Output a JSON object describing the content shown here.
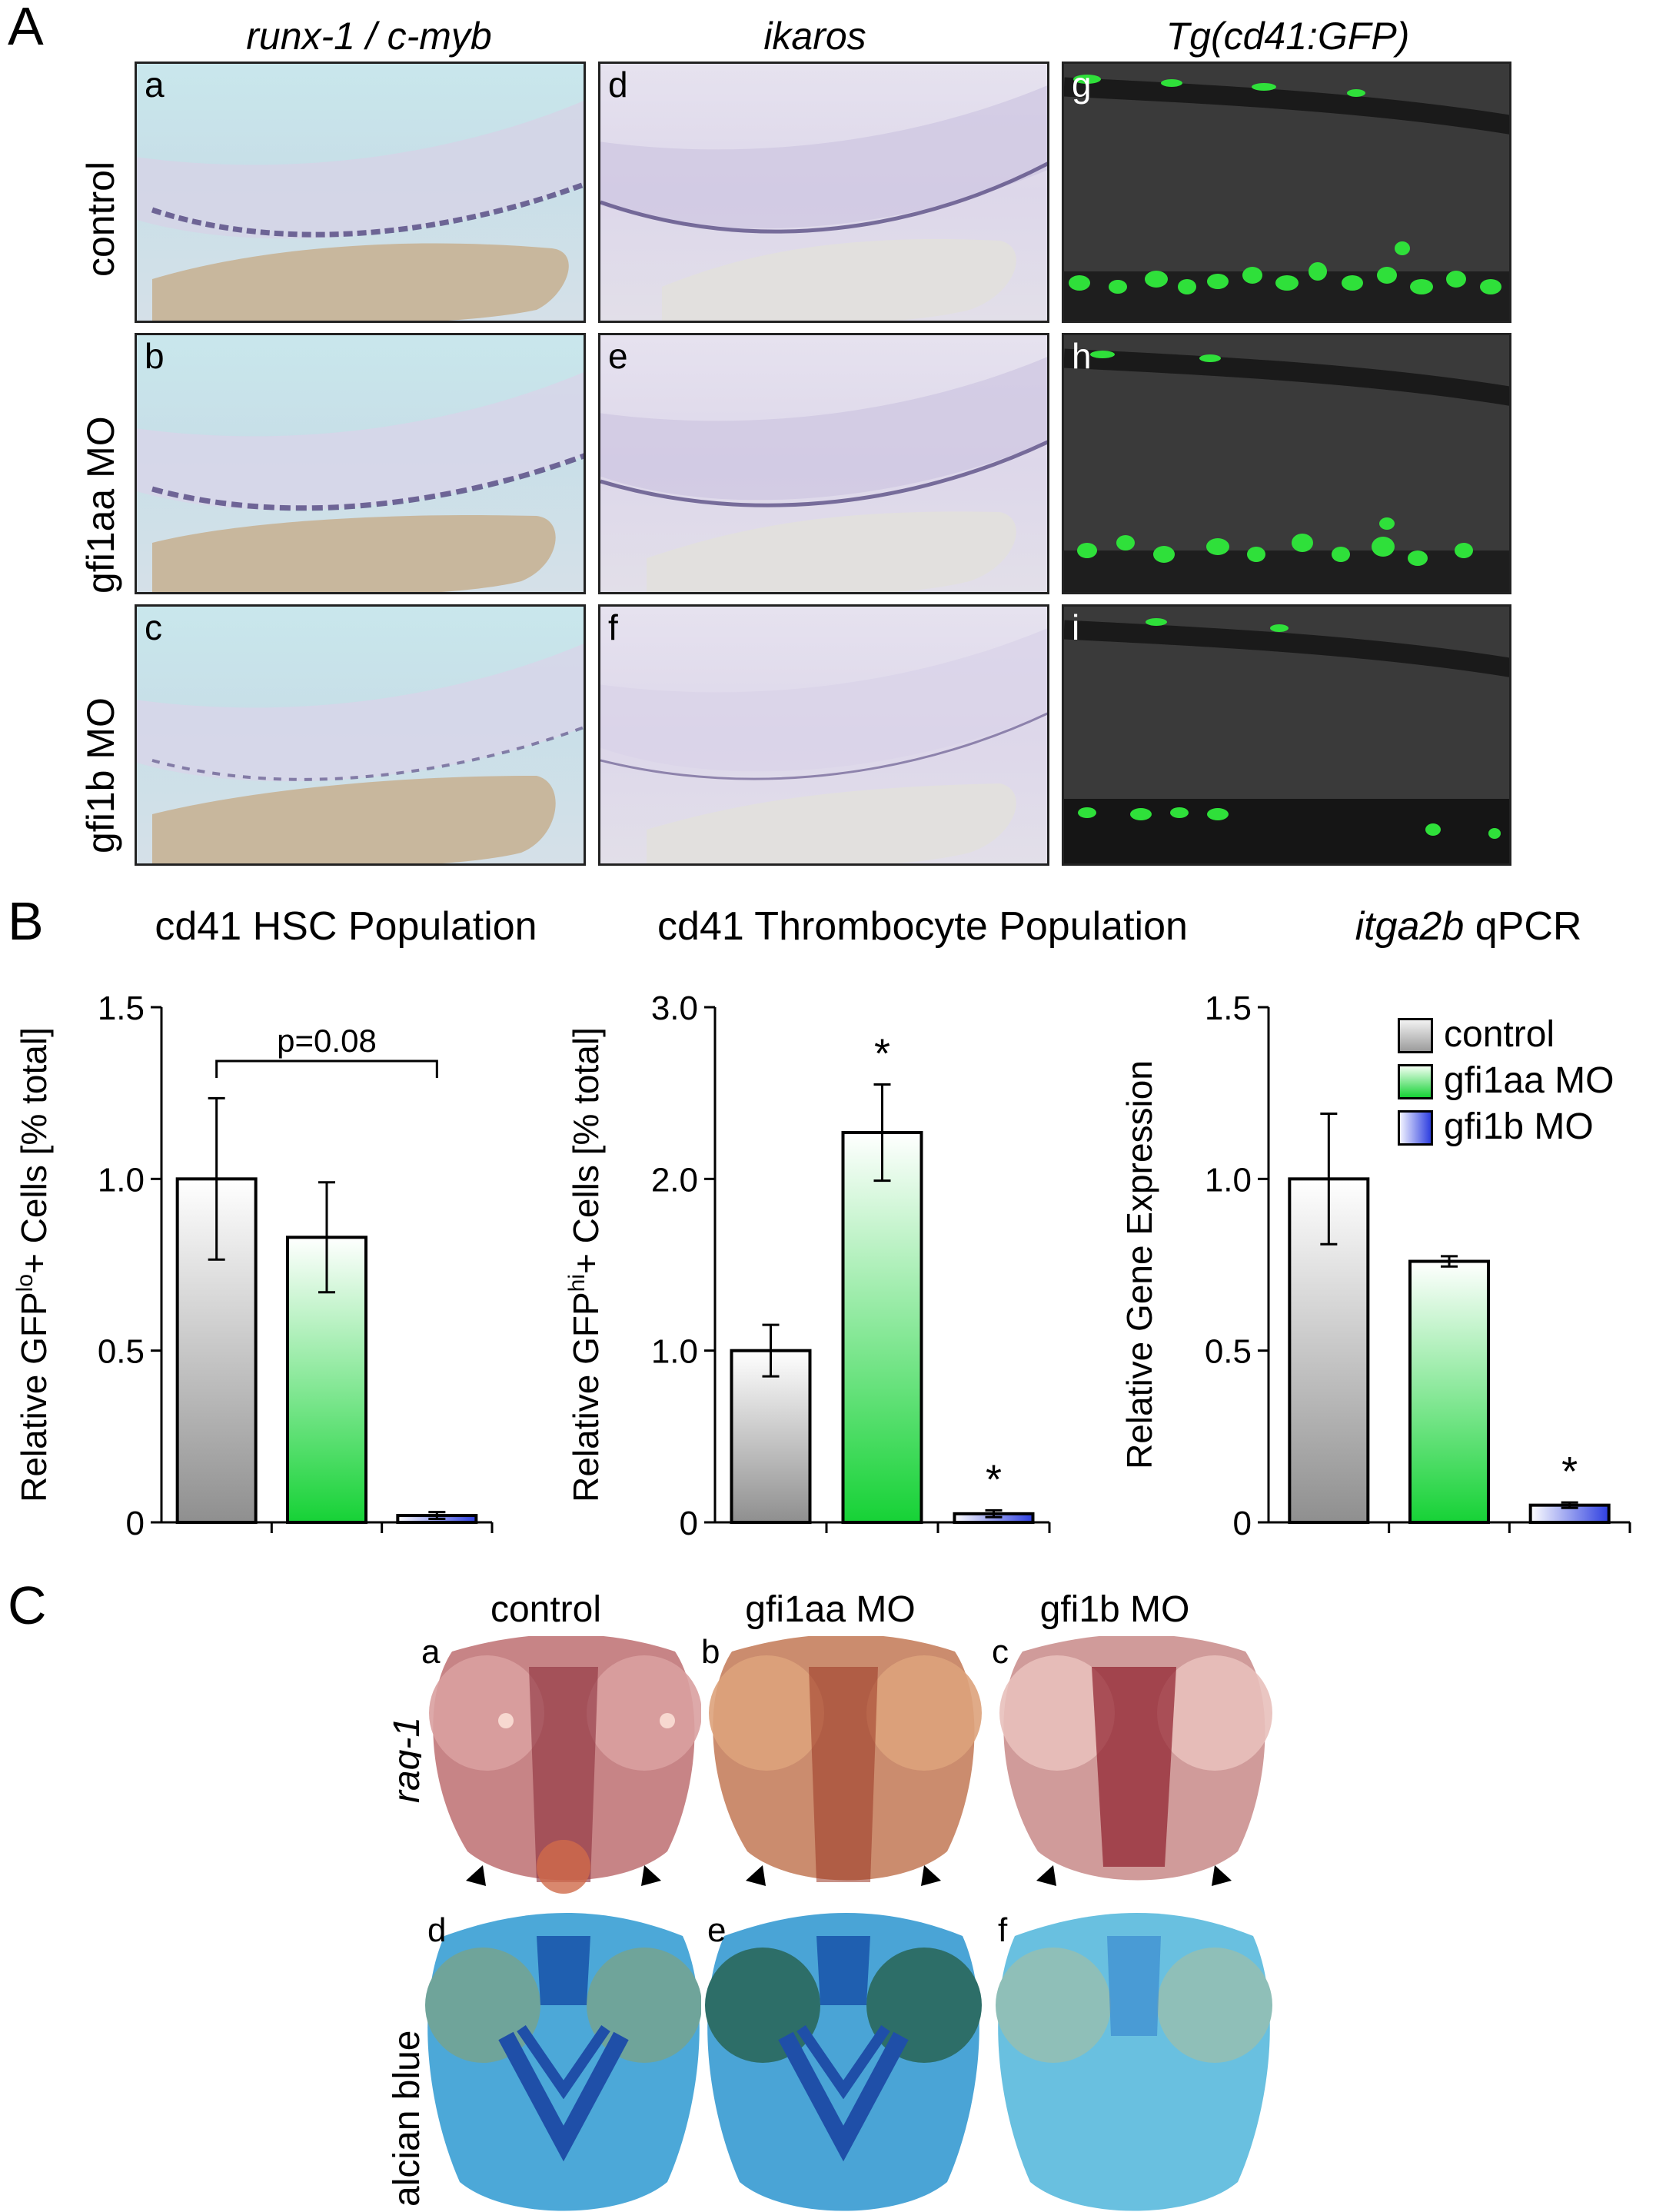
{
  "figure": {
    "panel_letters": {
      "A": "A",
      "B": "B",
      "C": "C"
    },
    "panel_A": {
      "column_headers": [
        "runx-1 / c-myb",
        "ikaros",
        "Tg(cd41:GFP)"
      ],
      "row_labels": [
        "control",
        "gfi1aa MO",
        "gfi1b MO"
      ],
      "tile_letters": [
        "a",
        "b",
        "c",
        "d",
        "e",
        "f",
        "g",
        "h",
        "i"
      ]
    },
    "panel_B": {
      "legend": [
        "control",
        "gfi1aa MO",
        "gfi1b MO"
      ],
      "colors": {
        "control": "#8f8f8f",
        "gfi1aa": "#16d236",
        "gfi1b": "#2e3fe0"
      }
    },
    "panel_C": {
      "column_headers": [
        "control",
        "gfi1aa MO",
        "gfi1b MO"
      ],
      "row_labels": [
        "rag-1",
        "alcian blue"
      ],
      "tile_letters": [
        "a",
        "b",
        "c",
        "d",
        "e",
        "f"
      ]
    }
  },
  "chart_data": [
    {
      "type": "bar",
      "title": "cd41 HSC Population",
      "ylabel": "Relative GFP",
      "ylabel_sup": "lo",
      "ylabel_rest": "+ Cells [% total]",
      "categories": [
        "control",
        "gfi1aa MO",
        "gfi1b MO"
      ],
      "values": [
        1.0,
        0.83,
        0.02
      ],
      "errors": [
        0.235,
        0.16,
        0.01
      ],
      "ylim": [
        0,
        1.5
      ],
      "yticks": [
        "0",
        "0.5",
        "1.0",
        "1.5"
      ],
      "yticks_values": [
        0,
        0.5,
        1.0,
        1.5
      ],
      "annotation": "p=0.08",
      "significance": [
        "",
        "",
        ""
      ]
    },
    {
      "type": "bar",
      "title": "cd41 Thrombocyte Population",
      "ylabel": "Relative GFP",
      "ylabel_sup": "hi",
      "ylabel_rest": "+ Cells [% total]",
      "categories": [
        "control",
        "gfi1aa MO",
        "gfi1b MO"
      ],
      "values": [
        1.0,
        2.27,
        0.05
      ],
      "errors": [
        0.15,
        0.28,
        0.02
      ],
      "ylim": [
        0,
        3.0
      ],
      "yticks": [
        "0",
        "1.0",
        "2.0",
        "3.0"
      ],
      "yticks_values": [
        0,
        1.0,
        2.0,
        3.0
      ],
      "significance": [
        "",
        "*",
        "*"
      ]
    },
    {
      "type": "bar",
      "title_italic": "itga2b",
      "title_rest": " qPCR",
      "ylabel": "Relative Gene Expression",
      "categories": [
        "control",
        "gfi1aa MO",
        "gfi1b MO"
      ],
      "values": [
        1.0,
        0.76,
        0.05
      ],
      "errors": [
        0.19,
        0.015,
        0.008
      ],
      "ylim": [
        0,
        1.5
      ],
      "yticks": [
        "0",
        "0.5",
        "1.0",
        "1.5"
      ],
      "yticks_values": [
        0,
        0.5,
        1.0,
        1.5
      ],
      "significance": [
        "",
        "",
        "*"
      ]
    }
  ]
}
